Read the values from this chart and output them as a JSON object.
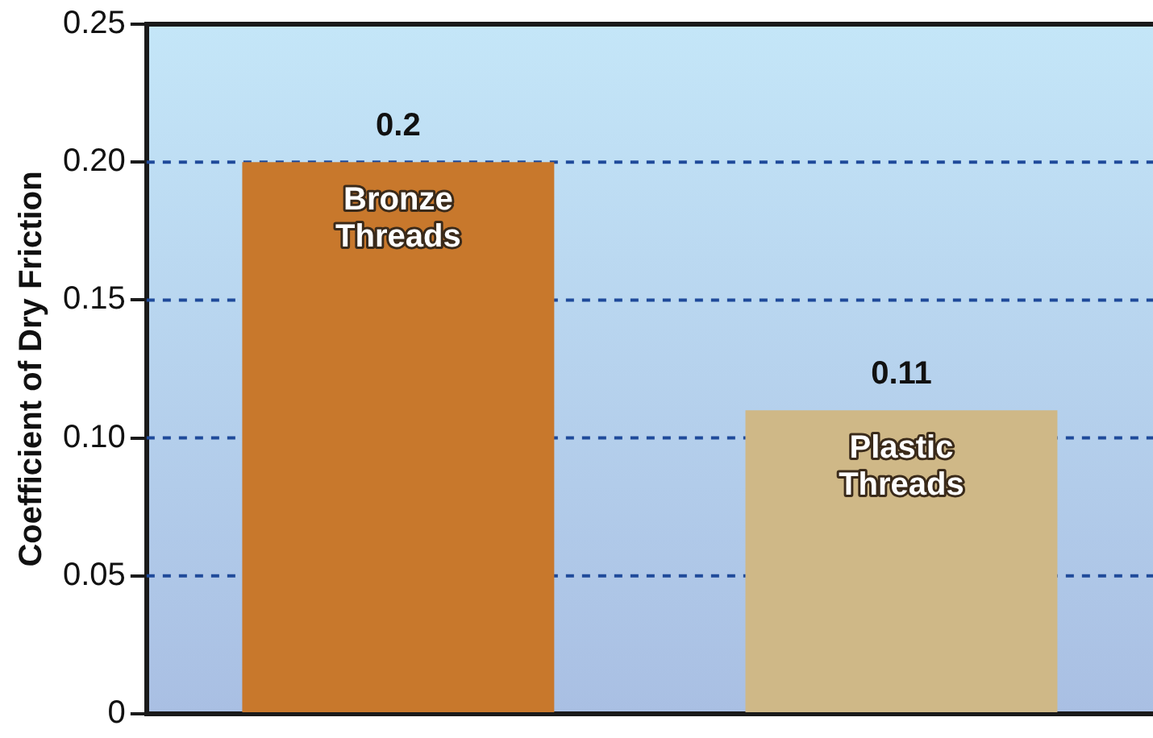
{
  "chart_data": {
    "type": "bar",
    "ylabel": "Coefficient of Dry Friction",
    "categories": [
      "Bronze Threads",
      "Plastic Threads"
    ],
    "values": [
      0.2,
      0.11
    ],
    "colors": [
      "#c8782c",
      "#cfb887"
    ],
    "ylim": [
      0,
      0.25
    ],
    "yticks": [
      {
        "value": 0,
        "label": "0"
      },
      {
        "value": 0.05,
        "label": "0.05"
      },
      {
        "value": 0.1,
        "label": "0.10"
      },
      {
        "value": 0.15,
        "label": "0.15"
      },
      {
        "value": 0.2,
        "label": "0.20"
      },
      {
        "value": 0.25,
        "label": "0.25"
      }
    ],
    "grid": "y",
    "data_labels": true,
    "legend": false
  }
}
